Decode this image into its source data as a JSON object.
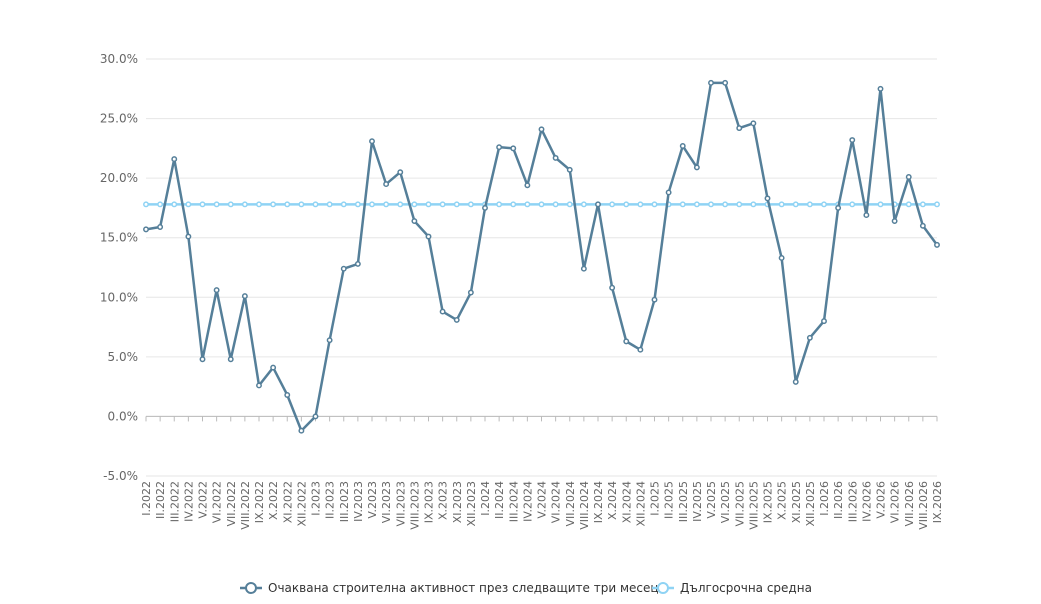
{
  "chart_data": {
    "type": "line",
    "title": "",
    "xlabel": "",
    "ylabel": "",
    "ylim": [
      -5,
      30
    ],
    "y_ticks": [
      -5,
      0,
      5,
      10,
      15,
      20,
      25,
      30
    ],
    "y_tick_labels": [
      "-5.0%",
      "0.0%",
      "5.0%",
      "10.0%",
      "15.0%",
      "20.0%",
      "25.0%",
      "30.0%"
    ],
    "grid": true,
    "legend_position": "bottom",
    "categories": [
      "I.2022",
      "II.2022",
      "III.2022",
      "IV.2022",
      "V.2022",
      "VI.2022",
      "VII.2022",
      "VIII.2022",
      "IX.2022",
      "X.2022",
      "XI.2022",
      "XII.2022",
      "I.2023",
      "II.2023",
      "III.2023",
      "IV.2023",
      "V.2023",
      "VI.2023",
      "VII.2023",
      "VIII.2023",
      "IX.2023",
      "X.2023",
      "XI.2023",
      "XII.2023",
      "I.2024",
      "II.2024",
      "III.2024",
      "IV.2024",
      "V.2024",
      "VI.2024",
      "VII.2024",
      "VIII.2024",
      "IX.2024",
      "X.2024",
      "XI.2024",
      "XII.2024",
      "I.2025",
      "II.2025",
      "III.2025",
      "IV.2025",
      "V.2025",
      "VI.2025",
      "VII.2025",
      "VIII.2025",
      "IX.2025",
      "X.2025",
      "XI.2025",
      "XII.2025",
      "I.2026",
      "II.2026",
      "III.2026",
      "IV.2026",
      "V.2026",
      "VI.2026",
      "VII.2026",
      "VIII.2026",
      "IX.2026"
    ],
    "series": [
      {
        "name": "Очаквана строителна активност през следващите три месеца",
        "color": "#557f99",
        "values": [
          15.7,
          15.9,
          21.6,
          15.1,
          4.8,
          10.6,
          4.8,
          10.1,
          2.6,
          4.1,
          1.8,
          -1.2,
          0.0,
          6.4,
          12.4,
          12.8,
          23.1,
          19.5,
          20.5,
          16.4,
          15.1,
          8.8,
          8.1,
          10.4,
          17.5,
          22.6,
          22.5,
          19.4,
          24.1,
          21.7,
          20.7,
          12.4,
          17.8,
          10.8,
          6.3,
          5.6,
          9.8,
          18.8,
          22.7,
          20.9,
          28.0,
          28.0,
          24.2,
          24.6,
          18.3,
          13.3,
          2.9,
          6.6,
          8.0,
          17.5,
          23.2,
          16.9,
          27.5,
          16.4,
          20.1,
          16.0,
          14.4
        ]
      },
      {
        "name": "Дългосрочна средна",
        "color": "#8fd3f4",
        "values": [
          17.8,
          17.8,
          17.8,
          17.8,
          17.8,
          17.8,
          17.8,
          17.8,
          17.8,
          17.8,
          17.8,
          17.8,
          17.8,
          17.8,
          17.8,
          17.8,
          17.8,
          17.8,
          17.8,
          17.8,
          17.8,
          17.8,
          17.8,
          17.8,
          17.8,
          17.8,
          17.8,
          17.8,
          17.8,
          17.8,
          17.8,
          17.8,
          17.8,
          17.8,
          17.8,
          17.8,
          17.8,
          17.8,
          17.8,
          17.8,
          17.8,
          17.8,
          17.8,
          17.8,
          17.8,
          17.8,
          17.8,
          17.8,
          17.8,
          17.8,
          17.8,
          17.8,
          17.8,
          17.8,
          17.8,
          17.8,
          17.8
        ]
      }
    ]
  }
}
